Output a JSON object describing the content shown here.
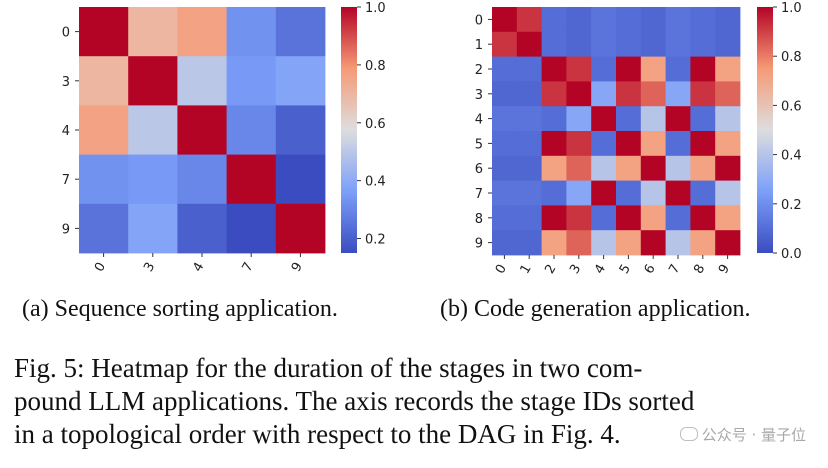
{
  "chart_data": [
    {
      "type": "heatmap",
      "title": "",
      "xlabel": "",
      "ylabel": "",
      "x_tick_labels": [
        "0",
        "3",
        "4",
        "7",
        "9"
      ],
      "y_tick_labels": [
        "0",
        "3",
        "4",
        "7",
        "9"
      ],
      "values": [
        [
          1.0,
          0.7,
          0.76,
          0.33,
          0.25
        ],
        [
          0.7,
          1.0,
          0.5,
          0.35,
          0.38
        ],
        [
          0.76,
          0.5,
          1.0,
          0.3,
          0.2
        ],
        [
          0.33,
          0.35,
          0.3,
          1.0,
          0.12
        ],
        [
          0.25,
          0.38,
          0.2,
          0.12,
          1.0
        ]
      ],
      "colorbar": {
        "range": [
          0.15,
          1.0
        ],
        "ticks": [
          0.2,
          0.4,
          0.6,
          0.8,
          1.0
        ],
        "tick_labels": [
          "0.2",
          "0.4",
          "0.6",
          "0.8",
          "1.0"
        ],
        "colormap": "coolwarm"
      }
    },
    {
      "type": "heatmap",
      "title": "",
      "xlabel": "",
      "ylabel": "",
      "x_tick_labels": [
        "0",
        "1",
        "2",
        "3",
        "4",
        "5",
        "6",
        "7",
        "8",
        "9"
      ],
      "y_tick_labels": [
        "0",
        "1",
        "2",
        "3",
        "4",
        "5",
        "6",
        "7",
        "8",
        "9"
      ],
      "values": [
        [
          1.0,
          0.92,
          0.1,
          0.08,
          0.12,
          0.1,
          0.08,
          0.12,
          0.1,
          0.08
        ],
        [
          0.92,
          1.0,
          0.1,
          0.08,
          0.12,
          0.1,
          0.08,
          0.12,
          0.1,
          0.08
        ],
        [
          0.1,
          0.1,
          1.0,
          0.92,
          0.1,
          1.0,
          0.72,
          0.1,
          1.0,
          0.72
        ],
        [
          0.08,
          0.08,
          0.92,
          1.0,
          0.28,
          0.92,
          0.84,
          0.28,
          0.92,
          0.84
        ],
        [
          0.12,
          0.12,
          0.1,
          0.28,
          1.0,
          0.1,
          0.4,
          1.0,
          0.1,
          0.4
        ],
        [
          0.1,
          0.1,
          1.0,
          0.92,
          0.1,
          1.0,
          0.72,
          0.1,
          1.0,
          0.72
        ],
        [
          0.08,
          0.08,
          0.72,
          0.84,
          0.4,
          0.72,
          1.0,
          0.4,
          0.72,
          1.0
        ],
        [
          0.12,
          0.12,
          0.1,
          0.28,
          1.0,
          0.1,
          0.4,
          1.0,
          0.1,
          0.4
        ],
        [
          0.1,
          0.1,
          1.0,
          0.92,
          0.1,
          1.0,
          0.72,
          0.1,
          1.0,
          0.72
        ],
        [
          0.08,
          0.08,
          0.72,
          0.84,
          0.4,
          0.72,
          1.0,
          0.4,
          0.72,
          1.0
        ]
      ],
      "colorbar": {
        "range": [
          0.0,
          1.0
        ],
        "ticks": [
          0.0,
          0.2,
          0.4,
          0.6,
          0.8,
          1.0
        ],
        "tick_labels": [
          "0.0",
          "0.2",
          "0.4",
          "0.6",
          "0.8",
          "1.0"
        ],
        "colormap": "coolwarm"
      }
    }
  ],
  "captions": {
    "sub_a": "(a) Sequence sorting application.",
    "sub_b": "(b) Code generation application.",
    "figure_lines": [
      "Fig. 5: Heatmap for the duration of the stages in two com-",
      "pound LLM applications. The axis records the stage IDs sorted",
      "in a topological order with respect to the DAG in Fig. 4."
    ]
  },
  "watermark": {
    "icon": "wechat-icon",
    "text": "公众号 · 量子位"
  }
}
